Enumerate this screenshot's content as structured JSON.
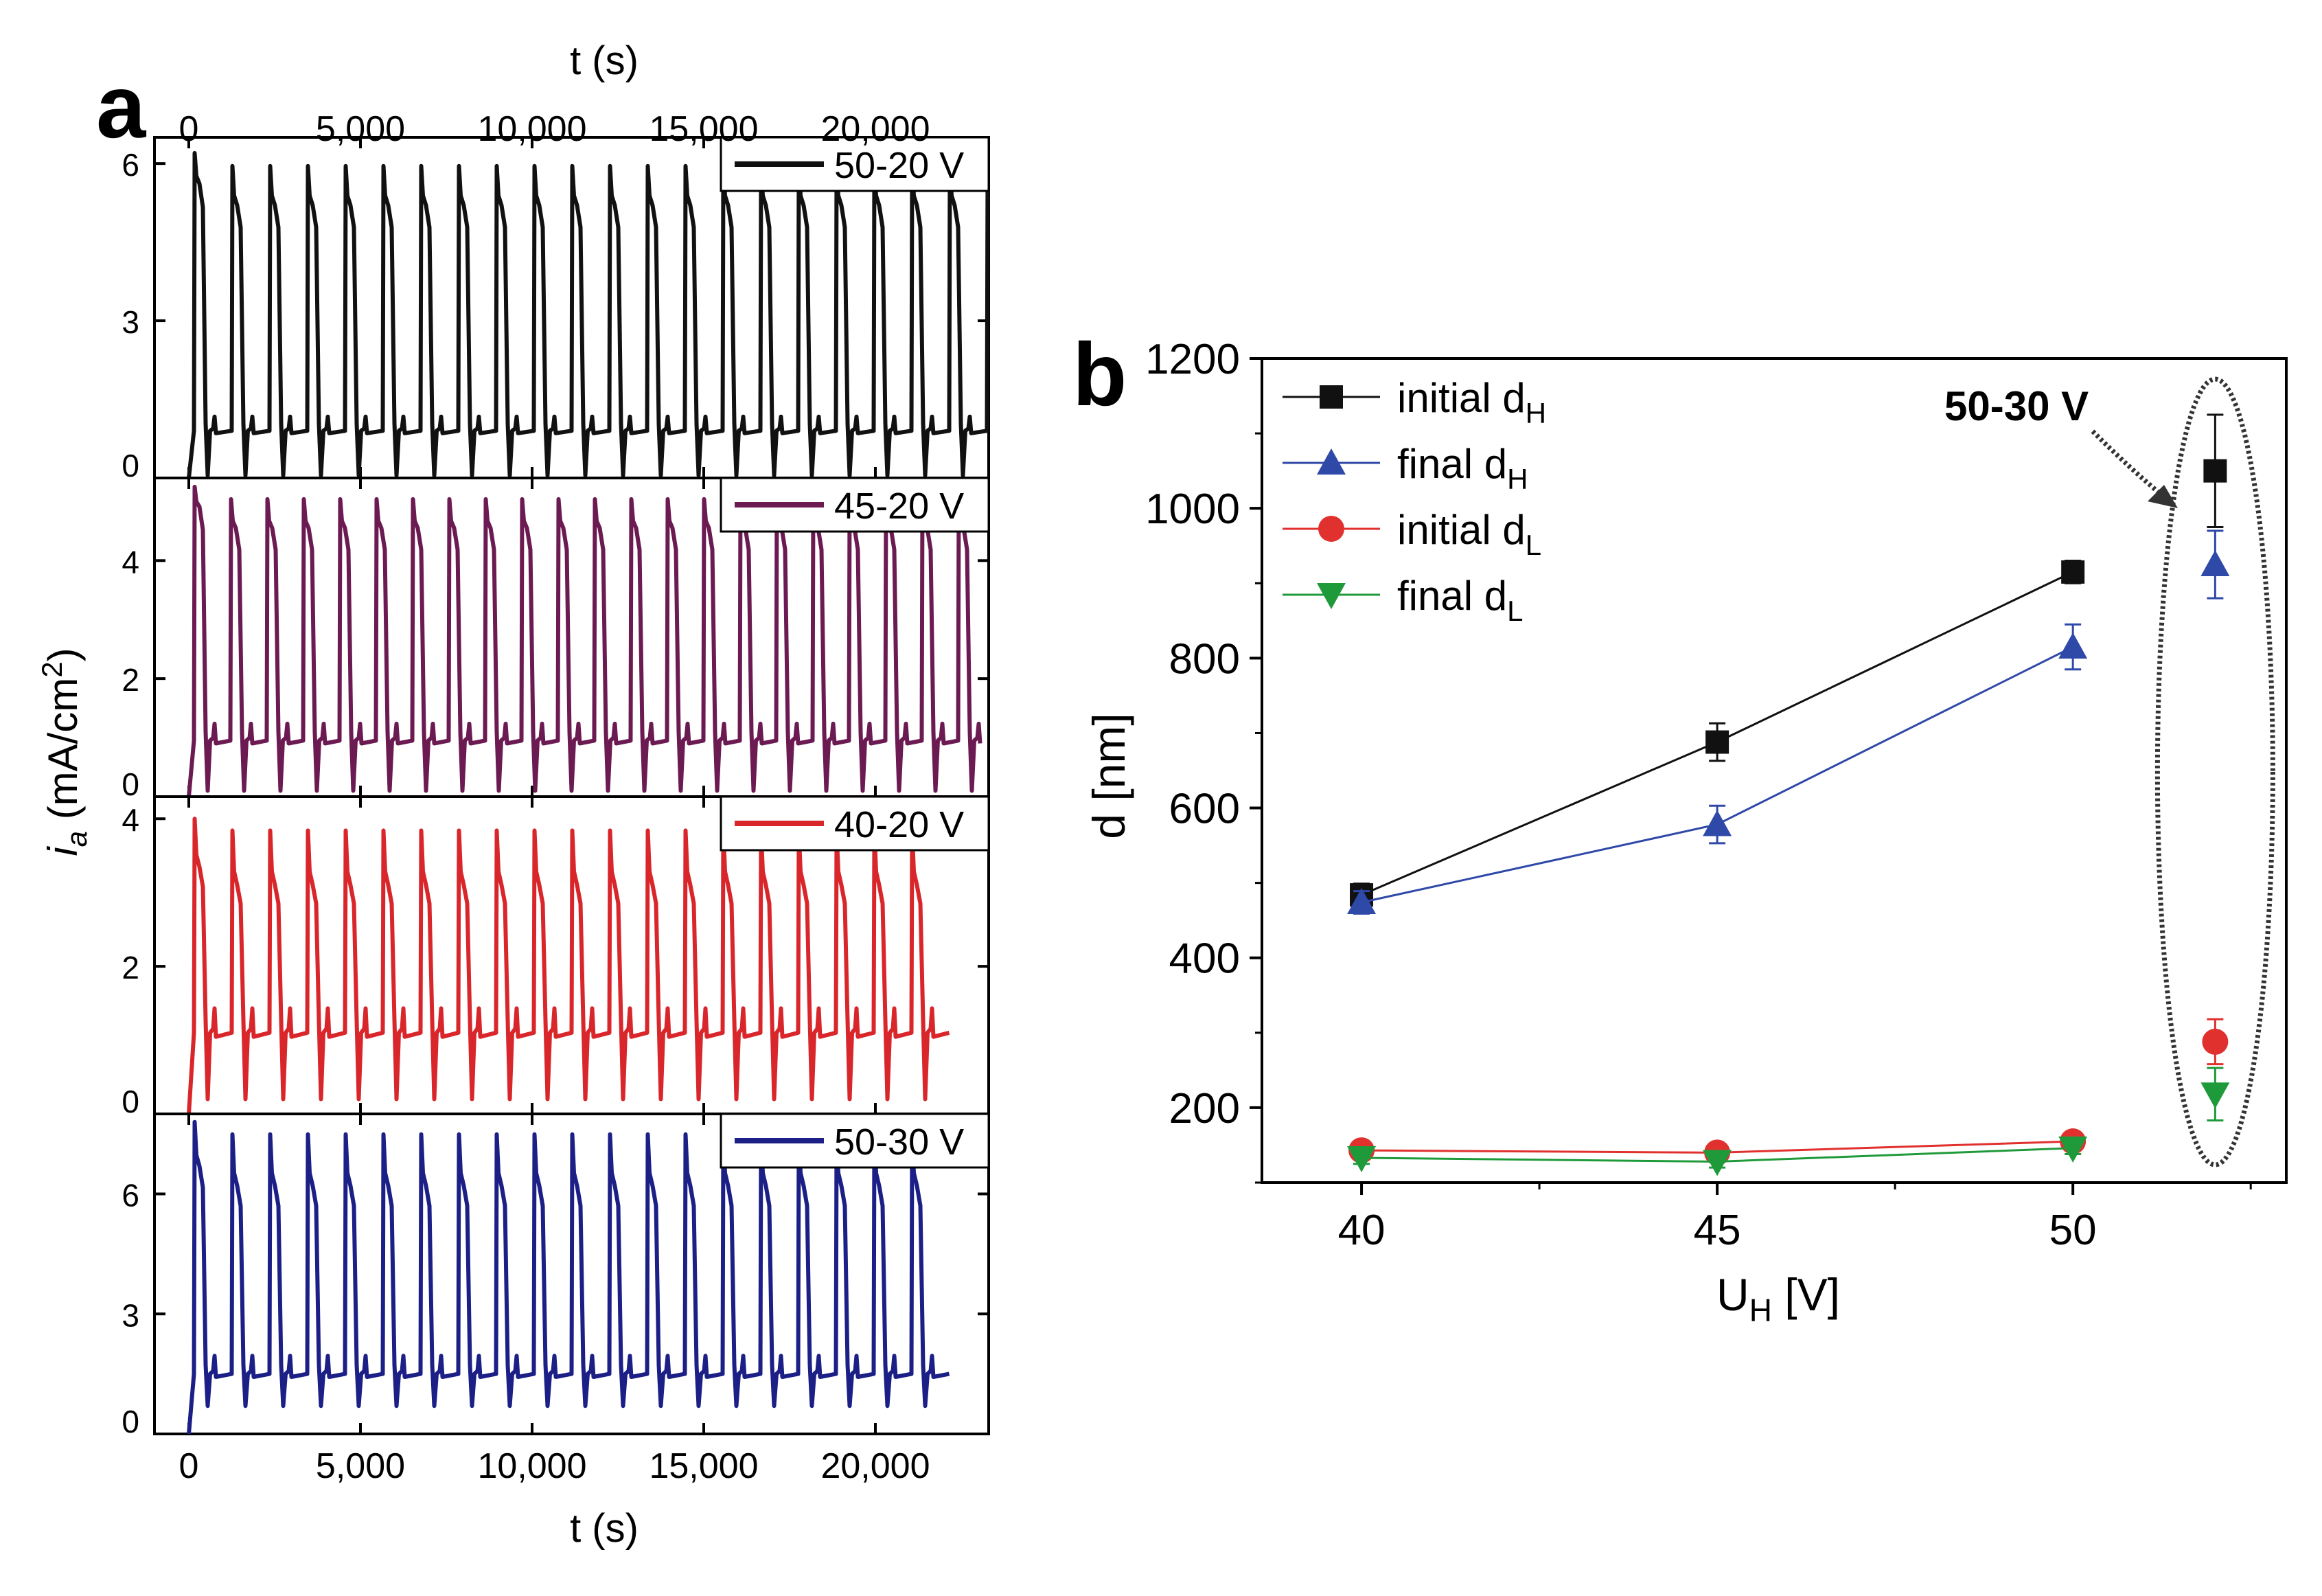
{
  "colors": {
    "black": "#111111",
    "purple": "#6b1a52",
    "red": "#d9262b",
    "navy": "#1b1f86",
    "blue": "#2f49a8",
    "green": "#1f9a3a",
    "redMarker": "#e0312f",
    "grid": "#000000"
  },
  "panel_a": {
    "letter": "a",
    "top_axis_label": "t (s)",
    "bottom_axis_label": "t (s)",
    "y_label_main": "i",
    "y_label_sub": "a",
    "y_label_rest": " (mA/cm",
    "y_label_sup": "2",
    "y_label_close": ")"
  },
  "panel_b": {
    "letter": "b",
    "xlabel_main": "U",
    "xlabel_sub": "H",
    "xlabel_rest": " [V]",
    "ylabel": "d [nm]",
    "annotation": "50-30 V"
  },
  "chart_data": [
    {
      "id": "a",
      "type": "line",
      "title": "",
      "xlabel": "t (s)",
      "ylabel": "i_a (mA/cm^2)",
      "xlim": [
        -1000,
        23300
      ],
      "xticks": [
        0,
        5000,
        10000,
        15000,
        20000
      ],
      "xtick_labels": [
        "0",
        "5,000",
        "10,000",
        "15,000",
        "20,000"
      ],
      "panels": [
        {
          "name": "50-20 V",
          "legend": "50-20 V",
          "color": "#111111",
          "ylim": [
            0,
            6.5
          ],
          "yticks": [
            0,
            3,
            6
          ],
          "ytick_labels": [
            "0",
            "3",
            "6"
          ],
          "pulse_period": 1100,
          "pulses": 22,
          "peak": 6.2,
          "plateau": 5.2,
          "base": 0.9,
          "trough": 0.05,
          "t_end": 23300
        },
        {
          "name": "45-20 V",
          "legend": "45-20 V",
          "color": "#6b1a52",
          "ylim": [
            0,
            5.4
          ],
          "yticks": [
            0,
            2,
            4
          ],
          "ytick_labels": [
            "0",
            "2",
            "4"
          ],
          "pulse_period": 1060,
          "pulses": 22,
          "peak": 5.25,
          "plateau": 4.55,
          "base": 0.95,
          "trough": 0.1,
          "t_end": 23300
        },
        {
          "name": "40-20 V",
          "legend": "40-20 V",
          "color": "#d9262b",
          "ylim": [
            0,
            4.3
          ],
          "yticks": [
            0,
            2,
            4
          ],
          "ytick_labels": [
            "0",
            "2",
            "4"
          ],
          "pulse_period": 1100,
          "pulses": 20,
          "peak": 4.0,
          "plateau": 3.1,
          "base": 1.1,
          "trough": 0.2,
          "t_end": 22500
        },
        {
          "name": "50-30 V",
          "legend": "50-30 V",
          "color": "#1b1f86",
          "ylim": [
            0,
            8.0
          ],
          "yticks": [
            0,
            3,
            6
          ],
          "ytick_labels": [
            "0",
            "3",
            "6"
          ],
          "pulse_period": 1100,
          "pulses": 20,
          "peak": 7.8,
          "plateau": 6.2,
          "base": 1.5,
          "trough": 0.7,
          "t_end": 22500
        }
      ]
    },
    {
      "id": "b",
      "type": "scatter",
      "xlabel": "U_H [V]",
      "ylabel": "d [nm]",
      "xlim": [
        38.6,
        53.0
      ],
      "ylim": [
        100,
        1200
      ],
      "xticks": [
        40,
        45,
        50
      ],
      "xtick_labels": [
        "40",
        "45",
        "50"
      ],
      "yticks": [
        200,
        400,
        600,
        800,
        1000,
        1200
      ],
      "ytick_labels": [
        "200",
        "400",
        "600",
        "800",
        "1000",
        "1200"
      ],
      "extra_x": 52,
      "series": [
        {
          "name": "initial d_H",
          "label": "initial d",
          "sub": "H",
          "color": "#111111",
          "marker": "square",
          "x": [
            40,
            45,
            50
          ],
          "y": [
            484,
            688,
            915
          ],
          "err": [
            15,
            25,
            15
          ],
          "extra_y": 1050,
          "extra_err": 75
        },
        {
          "name": "final d_H",
          "label": "final d",
          "sub": "H",
          "color": "#2f49a8",
          "marker": "triangle-up",
          "x": [
            40,
            45,
            50
          ],
          "y": [
            474,
            578,
            815
          ],
          "err": [
            15,
            25,
            30
          ],
          "extra_y": 925,
          "extra_err": 45
        },
        {
          "name": "initial d_L",
          "label": "initial d",
          "sub": "L",
          "color": "#e0312f",
          "marker": "circle",
          "x": [
            40,
            45,
            50
          ],
          "y": [
            143,
            140,
            155
          ],
          "err": [
            8,
            8,
            10
          ],
          "extra_y": 288,
          "extra_err": 30
        },
        {
          "name": "final d_L",
          "label": "final d",
          "sub": "L",
          "color": "#1f9a3a",
          "marker": "triangle-down",
          "x": [
            40,
            45,
            50
          ],
          "y": [
            133,
            128,
            146
          ],
          "err": [
            8,
            8,
            8
          ],
          "extra_y": 218,
          "extra_err": 35
        }
      ],
      "annotation": "50-30 V"
    }
  ]
}
